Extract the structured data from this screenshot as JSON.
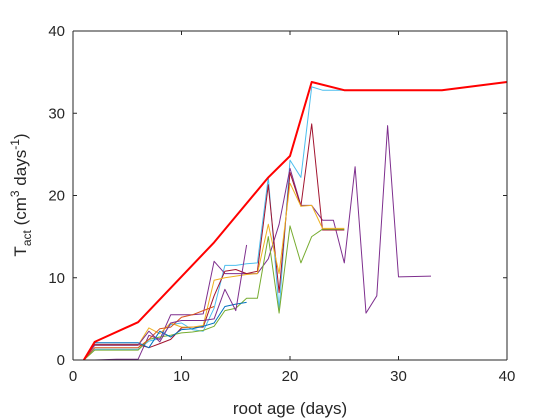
{
  "chart_data": {
    "type": "line",
    "title": "",
    "xlabel": "root age (days)",
    "ylabel": {
      "base": "T",
      "sub": "act",
      "unit_open": " (cm",
      "unit_sup1": "3",
      "unit_mid": " days",
      "unit_sup2": "-1",
      "unit_close": ")"
    },
    "xlim": [
      0,
      40
    ],
    "ylim": [
      0,
      40
    ],
    "xticks": [
      0,
      10,
      20,
      30,
      40
    ],
    "yticks": [
      0,
      10,
      20,
      30,
      40
    ],
    "grid": false,
    "legend": "none",
    "series": [
      {
        "color": "#ff0000",
        "width": 2,
        "x": [
          1,
          2,
          6,
          13,
          18,
          20,
          22,
          25,
          34,
          40
        ],
        "y": [
          0,
          2.2,
          4.6,
          14.3,
          22.2,
          24.8,
          33.8,
          32.8,
          32.8,
          33.8
        ]
      },
      {
        "color": "#4dbeee",
        "width": 1,
        "x": [
          1,
          2,
          6,
          7,
          8,
          9,
          10,
          11,
          12,
          13,
          14,
          15,
          16,
          17,
          18,
          19,
          20,
          21,
          22,
          23,
          25
        ],
        "y": [
          0,
          1.3,
          1.3,
          2.3,
          2.6,
          4.3,
          4.5,
          3.7,
          3.5,
          6.3,
          11.5,
          11.5,
          11.7,
          11.8,
          22.2,
          6,
          24.3,
          22.2,
          33.2,
          32.8,
          32.8
        ]
      },
      {
        "color": "#7e2f8e",
        "width": 1,
        "x": [
          1,
          2,
          4,
          6,
          7,
          8,
          9,
          10,
          11,
          12,
          13,
          14,
          15,
          16,
          17,
          18,
          19,
          20,
          21,
          22,
          23,
          24,
          25,
          26,
          27,
          28,
          29,
          30,
          33
        ],
        "y": [
          0,
          0,
          0.1,
          0.1,
          3,
          2.5,
          5.5,
          5.5,
          5.5,
          5.6,
          12,
          10.5,
          10.5,
          10.5,
          10.5,
          12.3,
          16.5,
          23.3,
          18.8,
          18.8,
          17,
          17,
          11.8,
          23.5,
          5.7,
          7.8,
          28.5,
          10.1,
          10.2
        ]
      },
      {
        "color": "#a2142f",
        "width": 1,
        "x": [
          1,
          2,
          6,
          7,
          8,
          9,
          10,
          11,
          12,
          13,
          14,
          15,
          16,
          17,
          18,
          19,
          20,
          21,
          22,
          23,
          25
        ],
        "y": [
          0,
          1.9,
          1.9,
          1.5,
          2,
          2.5,
          3.9,
          4,
          4,
          7.8,
          10.8,
          11,
          10.5,
          10.8,
          21.3,
          8.2,
          22.8,
          18.7,
          28.7,
          15.8,
          15.8
        ]
      },
      {
        "color": "#77ac30",
        "width": 1,
        "x": [
          1,
          2,
          6,
          7,
          8,
          9,
          10,
          11,
          12,
          13,
          14,
          15,
          16,
          17,
          18,
          19,
          20,
          21,
          22,
          23,
          25
        ],
        "y": [
          0,
          1.2,
          1.2,
          2.5,
          2.8,
          3,
          3.3,
          3.4,
          3.6,
          4.1,
          6,
          6.3,
          7.5,
          7.5,
          15,
          5.7,
          16.3,
          11.8,
          15,
          15.9,
          15.9
        ]
      },
      {
        "color": "#edb120",
        "width": 1,
        "x": [
          1,
          2,
          6,
          7,
          8,
          9,
          10,
          11,
          12,
          13,
          14,
          15,
          16,
          17,
          18,
          19,
          20,
          21,
          22,
          23,
          25
        ],
        "y": [
          0,
          1.8,
          1.8,
          3.9,
          3.2,
          4.5,
          4,
          4,
          4.2,
          9.7,
          10,
          10.2,
          10.4,
          10.5,
          16.5,
          10.5,
          21.5,
          18.7,
          18.8,
          16,
          16
        ]
      },
      {
        "color": "#d95319",
        "width": 1,
        "x": [
          1,
          2,
          6,
          7,
          8,
          9,
          10,
          11,
          12,
          13
        ],
        "y": [
          0,
          1.5,
          1.5,
          2.5,
          3.8,
          4,
          5.2,
          5.5,
          6,
          6.5
        ]
      },
      {
        "color": "#0072bd",
        "width": 1,
        "x": [
          1,
          2,
          6,
          7,
          8,
          9,
          10,
          11,
          12,
          13,
          14,
          15,
          16
        ],
        "y": [
          0,
          2.1,
          2.1,
          1.5,
          3.5,
          2.8,
          3.7,
          3.8,
          4.1,
          4.5,
          6.5,
          6.8,
          7
        ]
      },
      {
        "color": "#7e2f8e",
        "width": 1,
        "x": [
          1,
          2,
          6,
          7,
          8,
          9,
          10,
          11,
          12,
          13,
          14,
          15,
          16
        ],
        "y": [
          0,
          1.8,
          1.8,
          3.5,
          2.2,
          4.5,
          4.8,
          4.8,
          4.8,
          5,
          8.6,
          6,
          14
        ]
      }
    ]
  }
}
